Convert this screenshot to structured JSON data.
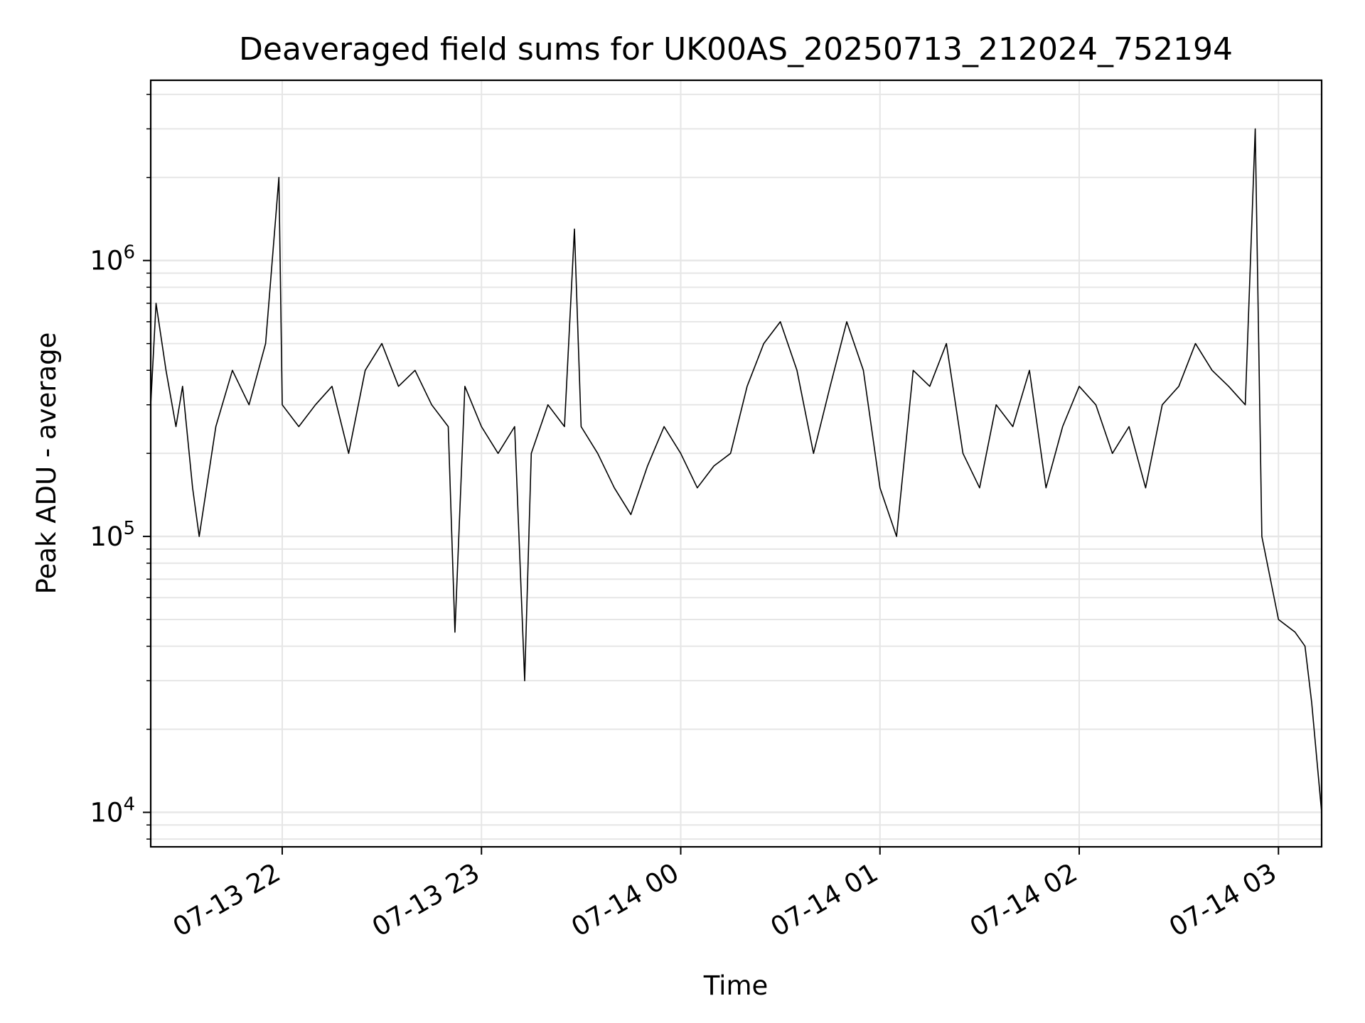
{
  "chart_data": {
    "type": "line",
    "title": "Deaveraged field sums for UK00AS_20250713_212024_752194",
    "xlabel": "Time",
    "ylabel": "Peak ADU - average",
    "yscale": "log",
    "ylim": [
      7500,
      4500000
    ],
    "xlim": [
      "07-13 21:20:24",
      "07-14 03:13:00"
    ],
    "grid": true,
    "line_color": "#000000",
    "grid_color": "#e6e6e6",
    "x_ticks": [
      {
        "label": "07-13 22",
        "time": "07-13 22:00"
      },
      {
        "label": "07-13 23",
        "time": "07-13 23:00"
      },
      {
        "label": "07-14 00",
        "time": "07-14 00:00"
      },
      {
        "label": "07-14 01",
        "time": "07-14 01:00"
      },
      {
        "label": "07-14 02",
        "time": "07-14 02:00"
      },
      {
        "label": "07-14 03",
        "time": "07-14 03:00"
      }
    ],
    "y_ticks": [
      {
        "base": "10",
        "exp": "4",
        "value": 10000
      },
      {
        "base": "10",
        "exp": "5",
        "value": 100000
      },
      {
        "base": "10",
        "exp": "6",
        "value": 1000000
      }
    ],
    "series": [
      {
        "x": [
          "07-13 21:20:24",
          "07-13 21:22",
          "07-13 21:25",
          "07-13 21:28",
          "07-13 21:30",
          "07-13 21:33",
          "07-13 21:35",
          "07-13 21:40",
          "07-13 21:45",
          "07-13 21:50",
          "07-13 21:55",
          "07-13 21:59",
          "07-13 22:00",
          "07-13 22:05",
          "07-13 22:10",
          "07-13 22:15",
          "07-13 22:20",
          "07-13 22:25",
          "07-13 22:30",
          "07-13 22:35",
          "07-13 22:40",
          "07-13 22:45",
          "07-13 22:50",
          "07-13 22:52",
          "07-13 22:55",
          "07-13 23:00",
          "07-13 23:05",
          "07-13 23:10",
          "07-13 23:13",
          "07-13 23:15",
          "07-13 23:20",
          "07-13 23:25",
          "07-13 23:28",
          "07-13 23:30",
          "07-13 23:35",
          "07-13 23:40",
          "07-13 23:45",
          "07-13 23:50",
          "07-13 23:55",
          "07-14 00:00",
          "07-14 00:05",
          "07-14 00:10",
          "07-14 00:15",
          "07-14 00:20",
          "07-14 00:25",
          "07-14 00:30",
          "07-14 00:35",
          "07-14 00:40",
          "07-14 00:45",
          "07-14 00:50",
          "07-14 00:55",
          "07-14 01:00",
          "07-14 01:05",
          "07-14 01:10",
          "07-14 01:15",
          "07-14 01:20",
          "07-14 01:25",
          "07-14 01:30",
          "07-14 01:35",
          "07-14 01:40",
          "07-14 01:45",
          "07-14 01:50",
          "07-14 01:55",
          "07-14 02:00",
          "07-14 02:05",
          "07-14 02:10",
          "07-14 02:15",
          "07-14 02:20",
          "07-14 02:25",
          "07-14 02:30",
          "07-14 02:35",
          "07-14 02:40",
          "07-14 02:45",
          "07-14 02:50",
          "07-14 02:53",
          "07-14 02:55",
          "07-14 03:00",
          "07-14 03:05",
          "07-14 03:08",
          "07-14 03:10",
          "07-14 03:13"
        ],
        "y": [
          300000,
          700000,
          400000,
          250000,
          350000,
          150000,
          100000,
          250000,
          400000,
          300000,
          500000,
          2000000,
          300000,
          250000,
          300000,
          350000,
          200000,
          400000,
          500000,
          350000,
          400000,
          300000,
          250000,
          45000,
          350000,
          250000,
          200000,
          250000,
          30000,
          200000,
          300000,
          250000,
          1300000,
          250000,
          200000,
          150000,
          120000,
          180000,
          250000,
          200000,
          150000,
          180000,
          200000,
          350000,
          500000,
          600000,
          400000,
          200000,
          350000,
          600000,
          400000,
          150000,
          100000,
          400000,
          350000,
          500000,
          200000,
          150000,
          300000,
          250000,
          400000,
          150000,
          250000,
          350000,
          300000,
          200000,
          250000,
          150000,
          300000,
          350000,
          500000,
          400000,
          350000,
          300000,
          3000000,
          100000,
          50000,
          45000,
          40000,
          25000,
          10000
        ],
        "values": [
          300000,
          700000,
          400000,
          250000,
          350000,
          150000,
          100000,
          250000,
          400000,
          300000,
          500000,
          2000000,
          300000,
          250000,
          300000,
          350000,
          200000,
          400000,
          500000,
          350000,
          400000,
          300000,
          250000,
          45000,
          350000,
          250000,
          200000,
          250000,
          30000,
          200000,
          300000,
          250000,
          1300000,
          250000,
          200000,
          150000,
          120000,
          180000,
          250000,
          200000,
          150000,
          180000,
          200000,
          350000,
          500000,
          600000,
          400000,
          200000,
          350000,
          600000,
          400000,
          150000,
          100000,
          400000,
          350000,
          500000,
          200000,
          150000,
          300000,
          250000,
          400000,
          150000,
          250000,
          350000,
          300000,
          200000,
          250000,
          150000,
          300000,
          350000,
          500000,
          400000,
          350000,
          300000,
          3000000,
          100000,
          50000,
          45000,
          40000,
          25000,
          10000
        ]
      }
    ]
  }
}
